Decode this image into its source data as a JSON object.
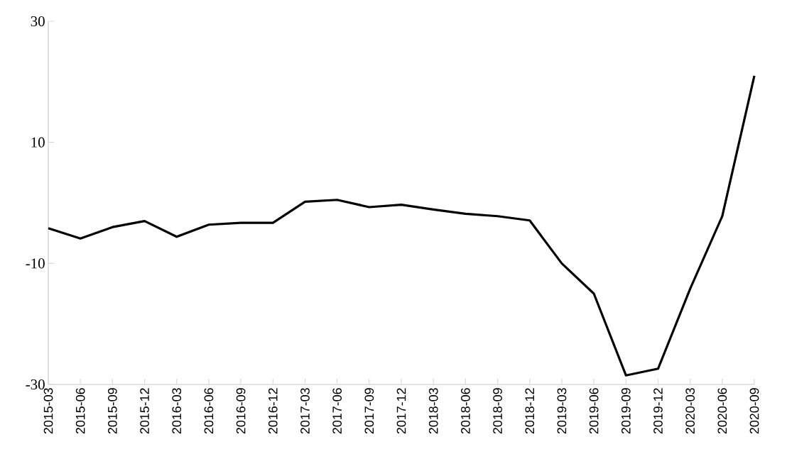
{
  "chart_data": {
    "type": "line",
    "categories": [
      "2015-03",
      "2015-06",
      "2015-09",
      "2015-12",
      "2016-03",
      "2016-06",
      "2016-09",
      "2016-12",
      "2017-03",
      "2017-06",
      "2017-09",
      "2017-12",
      "2018-03",
      "2018-06",
      "2018-09",
      "2018-12",
      "2019-03",
      "2019-06",
      "2019-09",
      "2019-12",
      "2020-03",
      "2020-06",
      "2020-09"
    ],
    "values": [
      -4.2,
      -5.9,
      -4.0,
      -3.0,
      -5.6,
      -3.6,
      -3.3,
      -3.3,
      0.2,
      0.5,
      -0.7,
      -0.3,
      -1.1,
      -1.8,
      -2.2,
      -2.9,
      -10.0,
      -15.0,
      -28.5,
      -27.4,
      -14.2,
      -2.2,
      21.0
    ],
    "color": "#000000",
    "ylim": [
      -30,
      30
    ],
    "yticks": [
      -30,
      -10,
      10,
      30
    ],
    "grid": false,
    "marker": "none",
    "line_style": "solid"
  }
}
